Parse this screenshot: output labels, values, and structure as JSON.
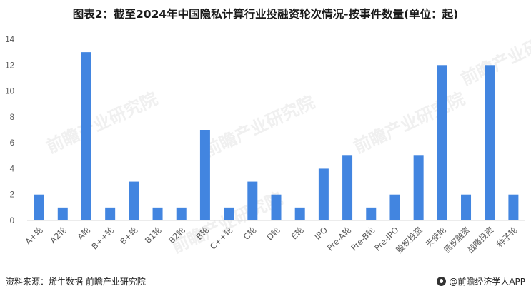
{
  "title": "图表2：截至2024年中国隐私计算行业投融资轮次情况-按事件数量(单位：起)",
  "footer": {
    "source": "资料来源：烯牛数据 前瞻产业研究院",
    "brand": "@前瞻经济学人APP"
  },
  "watermark": {
    "text": "前瞻产业研究院"
  },
  "colors": {
    "bar": "#4285E0",
    "axis": "#D9D9D9",
    "text": "#595959"
  },
  "chart_data": {
    "type": "bar",
    "categories": [
      "A+轮",
      "A2轮",
      "A轮",
      "B++轮",
      "B+轮",
      "B1轮",
      "B2轮",
      "B轮",
      "C++轮",
      "C轮",
      "D轮",
      "E轮",
      "IPO",
      "Pre-A轮",
      "Pre-B轮",
      "Pre-IPO",
      "股权投资",
      "天使轮",
      "债权融资",
      "战略投资",
      "种子轮"
    ],
    "values": [
      2,
      1,
      13,
      1,
      3,
      1,
      1,
      7,
      1,
      3,
      2,
      1,
      4,
      5,
      1,
      2,
      5,
      12,
      2,
      12,
      2
    ],
    "yticks": [
      0,
      2,
      4,
      6,
      8,
      10,
      12,
      14
    ],
    "ylim": [
      0,
      14
    ],
    "grid": false,
    "legend": "none"
  }
}
